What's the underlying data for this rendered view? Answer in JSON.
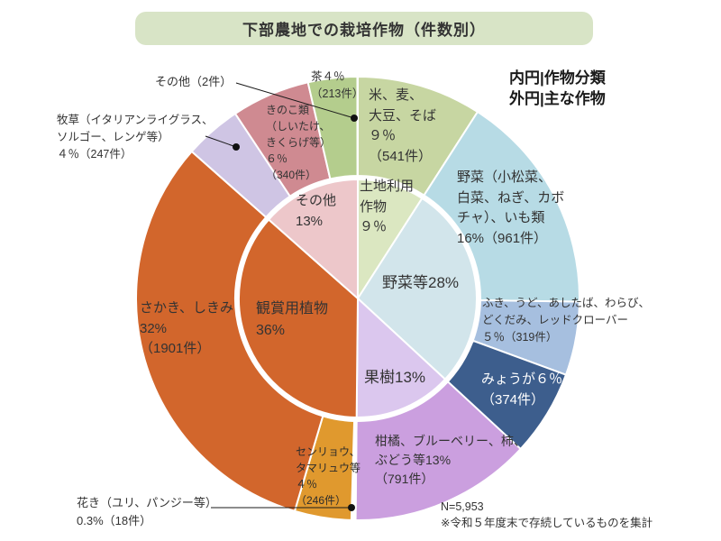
{
  "title": "下部農地での栽培作物（件数別）",
  "legend": {
    "text": "内円|作物分類\n外円|主な作物"
  },
  "note": {
    "text": "N=5,953\n※令和５年度末で存続しているものを集計"
  },
  "labels": {
    "sonota_outer": "その他（2件）",
    "cha": "茶４％\n（213件）",
    "kome": "米、麦、\n大豆、そば\n９％\n（541件）",
    "kinoko": "きのこ類\n（しいたけ、\nきくらげ等）\n６％\n（340件）",
    "bokusou": "牧草（イタリアンライグラス、\nソルゴー、レンゲ等）\n４％（247件）",
    "yasai": "野菜（小松菜、\n白菜、ねぎ、カボ\nチャ）、いも類\n16%（961件）",
    "fuki": "ふき、うど、あしたば、わらび、\nどくだみ、レッドクローバー\n５％（319件）",
    "myouga": "みょうが６％\n（374件）",
    "kankitsu": "柑橘、ブルーベリー、柿、\nぶどう等13%\n（791件）",
    "senryou": "センリョウ、\nタマリュウ等\n４％\n（246件）",
    "kaki": "花き（ユリ、パンジー等）\n0.3%（18件）",
    "sakaki": "さかき、しきみ\n32%\n（1901件）",
    "inner_tochi": "土地利用\n作物\n９％",
    "inner_yasai": "野菜等28%",
    "inner_kaju": "果樹13%",
    "inner_kanshou": "観賞用植物\n36%",
    "inner_sonota": "その他\n13%"
  },
  "chart_data": {
    "type": "pie",
    "variant": "nested-donut",
    "title": "下部農地での栽培作物（件数別）",
    "total": 5953,
    "units": "件",
    "rings": {
      "inner": "作物分類",
      "outer": "主な作物"
    },
    "legend_position": "top-right",
    "start_angle_deg": 0,
    "direction": "clockwise",
    "inner_series": [
      {
        "label": "土地利用作物",
        "pct": "9%",
        "count": 541,
        "color": "#dbe7c1"
      },
      {
        "label": "野菜等",
        "pct": "28%",
        "count": 1654,
        "color": "#d2e5eb"
      },
      {
        "label": "果樹",
        "pct": "13%",
        "count": 791,
        "color": "#dbc7ee"
      },
      {
        "label": "観賞用植物",
        "pct": "36%",
        "count": 2165,
        "color": "#d2662c"
      },
      {
        "label": "その他",
        "pct": "13%",
        "count": 802,
        "color": "#edc7ca"
      }
    ],
    "outer_series": [
      {
        "label": "米、麦、大豆、そば",
        "pct": "9%",
        "count": 541,
        "color": "#c7d6a2"
      },
      {
        "label": "野菜（小松菜、白菜、ねぎ、カボチャ）、いも類",
        "pct": "16%",
        "count": 961,
        "color": "#b7dbe5"
      },
      {
        "label": "ふき、うど、あしたば、わらび、どくだみ、レッドクローバー",
        "pct": "5%",
        "count": 319,
        "color": "#a6bfdf"
      },
      {
        "label": "みょうが",
        "pct": "6%",
        "count": 374,
        "color": "#3d5e8d"
      },
      {
        "label": "柑橘、ブルーベリー、柿、ぶどう等",
        "pct": "13%",
        "count": 791,
        "color": "#cb9fdf"
      },
      {
        "label": "花き（ユリ、パンジー等）",
        "pct": "0.3%",
        "count": 18,
        "color": "#ffffff"
      },
      {
        "label": "センリョウ、タマリュウ等",
        "pct": "4%",
        "count": 246,
        "color": "#e0992e"
      },
      {
        "label": "さかき、しきみ",
        "pct": "32%",
        "count": 1901,
        "color": "#d2662c"
      },
      {
        "label": "牧草（イタリアンライグラス、ソルゴー、レンゲ等）",
        "pct": "4%",
        "count": 247,
        "color": "#cfc5e4"
      },
      {
        "label": "きのこ類（しいたけ、きくらげ等）",
        "pct": "6%",
        "count": 340,
        "color": "#cf8a91"
      },
      {
        "label": "茶",
        "pct": "4%",
        "count": 213,
        "color": "#b4cd8d"
      },
      {
        "label": "その他",
        "pct": "",
        "count": 2,
        "color": "#e8a0a6"
      }
    ]
  }
}
